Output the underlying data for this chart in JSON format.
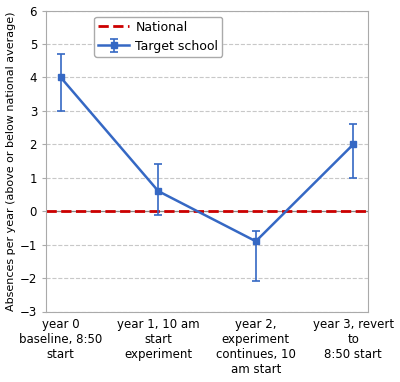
{
  "x": [
    0,
    1,
    2,
    3
  ],
  "y": [
    4.0,
    0.6,
    -0.9,
    2.0
  ],
  "yerr_upper": [
    0.7,
    0.8,
    0.3,
    0.6
  ],
  "yerr_lower": [
    1.0,
    0.7,
    1.2,
    1.0
  ],
  "x_labels": [
    "year 0\nbaseline, 8:50\nstart",
    "year 1, 10 am\nstart\nexperiment",
    "year 2,\nexperiment\ncontinues, 10\nam start",
    "year 3, revert\nto\n8:50 start"
  ],
  "line_color": "#3568c4",
  "line_marker": "s",
  "national_color": "#cc0000",
  "ylim": [
    -3,
    6
  ],
  "yticks": [
    -3,
    -2,
    -1,
    0,
    1,
    2,
    3,
    4,
    5,
    6
  ],
  "ylabel": "Absences per year (above or below national average)",
  "legend_target": "Target school",
  "legend_national": "National",
  "background_color": "#ffffff",
  "grid_color": "#c8c8c8",
  "label_fontsize": 8.0,
  "tick_fontsize": 8.5,
  "legend_fontsize": 9.0
}
